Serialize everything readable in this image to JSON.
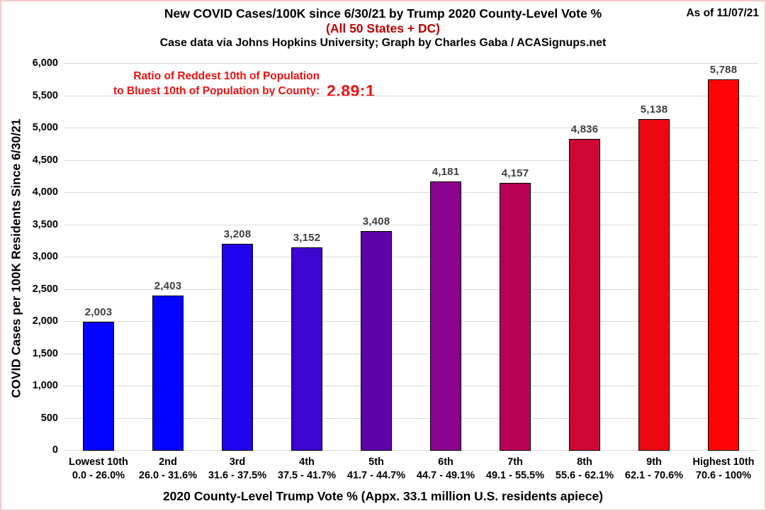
{
  "header": {
    "title": "New COVID Cases/100K since 6/30/21 by Trump 2020 County-Level Vote %",
    "subtitle": "(All 50 States + DC)",
    "credit": "Case data via Johns Hopkins University; Graph by Charles Gaba / ACASignups.net",
    "as_of": "As of 11/07/21"
  },
  "annotation": {
    "line1": "Ratio of Reddest 10th of Population",
    "line2": "to Bluest 10th of Population by County:",
    "ratio_value": "2.89:1"
  },
  "colors": {
    "subtitle_red": "#c00000",
    "annotation_red": "#ee1111",
    "data_label_gray": "#3f3f3f",
    "gridline": "#d9d9d9",
    "page_border_pink": "#f3c9c9"
  },
  "chart_data": {
    "type": "bar",
    "title": "New COVID Cases/100K since 6/30/21 by Trump 2020 County-Level Vote %",
    "xlabel": "2020 County-Level Trump Vote % (Appx. 33.1 million U.S. residents apiece)",
    "ylabel": "COVID Cases per 100K Residents Since 6/30/21",
    "ylim": [
      0,
      6000
    ],
    "grid": true,
    "legend_position": "none",
    "categories": [
      {
        "tier": "Lowest 10th",
        "range": "0.0 - 26.0%"
      },
      {
        "tier": "2nd",
        "range": "26.0 - 31.6%"
      },
      {
        "tier": "3rd",
        "range": "31.6 - 37.5%"
      },
      {
        "tier": "4th",
        "range": "37.5 - 41.7%"
      },
      {
        "tier": "5th",
        "range": "41.7 - 44.7%"
      },
      {
        "tier": "6th",
        "range": "44.7 - 49.1%"
      },
      {
        "tier": "7th",
        "range": "49.1 - 55.5%"
      },
      {
        "tier": "8th",
        "range": "55.6 - 62.1%"
      },
      {
        "tier": "9th",
        "range": "62.1 - 70.6%"
      },
      {
        "tier": "Highest 10th",
        "range": "70.6 - 100%"
      }
    ],
    "values": [
      2003,
      2403,
      3208,
      3152,
      3408,
      4181,
      4157,
      4836,
      5138,
      5788
    ],
    "value_labels": [
      "2,003",
      "2,403",
      "3,208",
      "3,152",
      "3,408",
      "4,181",
      "4,157",
      "4,836",
      "5,138",
      "5,788"
    ],
    "bar_colors": [
      "#0303fe",
      "#0303fe",
      "#2004ee",
      "#3c06cf",
      "#5e04aa",
      "#8b028c",
      "#ba0257",
      "#cd0833",
      "#ec0713",
      "#fe0404"
    ],
    "ytick_values": [
      0,
      500,
      1000,
      1500,
      2000,
      2500,
      3000,
      3500,
      4000,
      4500,
      5000,
      5500,
      6000
    ],
    "ytick_labels": [
      "0",
      "500",
      "1,000",
      "1,500",
      "2,000",
      "2,500",
      "3,000",
      "3,500",
      "4,000",
      "4,500",
      "5,000",
      "5,500",
      "6,000"
    ]
  }
}
